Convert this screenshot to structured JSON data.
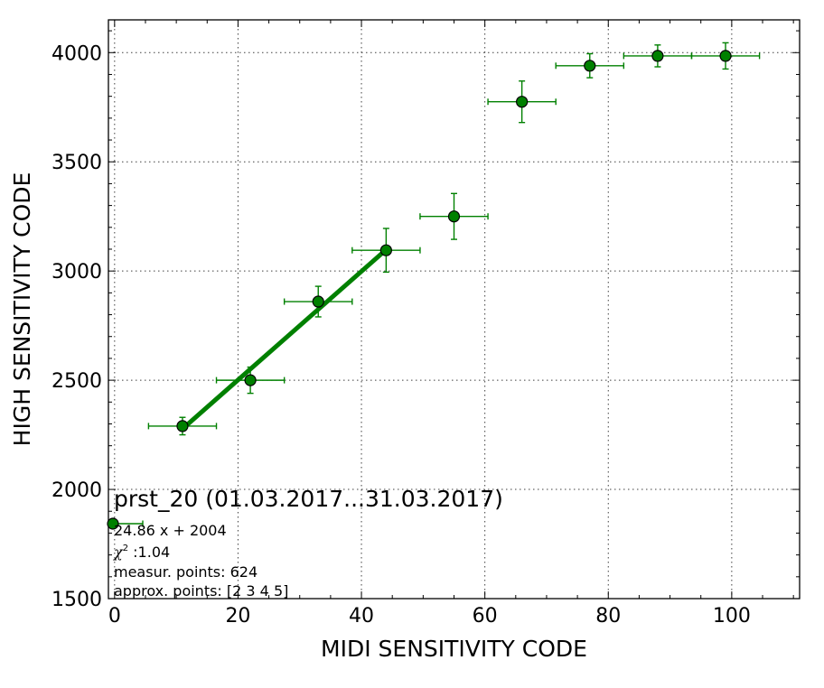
{
  "chart_data": {
    "type": "scatter",
    "xlabel": "MIDI SENSITIVITY CODE",
    "ylabel": "HIGH SENSITIVITY CODE",
    "xlim": [
      -1,
      111
    ],
    "ylim": [
      1500,
      4150
    ],
    "x_ticks": [
      0,
      20,
      40,
      60,
      80,
      100
    ],
    "y_ticks": [
      1500,
      2000,
      2500,
      3000,
      3500,
      4000
    ],
    "x_tick_labels": [
      "0",
      "20",
      "40",
      "60",
      "80",
      "100"
    ],
    "y_tick_labels": [
      "1500",
      "2000",
      "2500",
      "3000",
      "3500",
      "4000"
    ],
    "grid": true,
    "color": "#008000",
    "points": [
      {
        "x": 11,
        "y": 2290,
        "xerr": 5.5,
        "yerr": 40
      },
      {
        "x": 22,
        "y": 2500,
        "xerr": 5.5,
        "yerr": 60
      },
      {
        "x": 33,
        "y": 2860,
        "xerr": 5.5,
        "yerr": 70
      },
      {
        "x": 44,
        "y": 3095,
        "xerr": 5.5,
        "yerr": 100
      },
      {
        "x": 55,
        "y": 3250,
        "xerr": 5.5,
        "yerr": 105
      },
      {
        "x": 66,
        "y": 3775,
        "xerr": 5.5,
        "yerr": 95
      },
      {
        "x": 77,
        "y": 3940,
        "xerr": 5.5,
        "yerr": 55
      },
      {
        "x": 88,
        "y": 3985,
        "xerr": 5.5,
        "yerr": 50
      },
      {
        "x": 99,
        "y": 3985,
        "xerr": 5.5,
        "yerr": 60
      }
    ],
    "fit": {
      "slope": 24.86,
      "intercept": 2004,
      "x_range": [
        11,
        44
      ]
    },
    "annotation": {
      "title": "prst_20 (01.03.2017...31.03.2017)",
      "equation": "24.86 x + 2004",
      "chi2_symbol": "χ",
      "chi2_exp": "2",
      "chi2_value": " :1.04",
      "measured": "measur. points: 624",
      "approx": "approx. points: [2 3 4 5]"
    }
  }
}
